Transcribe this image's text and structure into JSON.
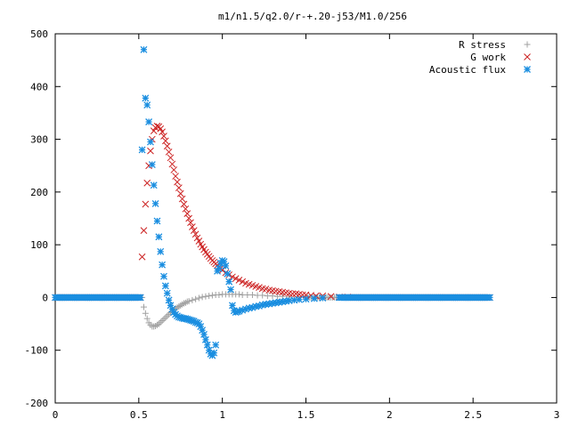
{
  "chart_data": {
    "type": "scatter",
    "title": "m1/n1.5/q2.0/r-+.20-j53/M1.0/256",
    "xlabel": "",
    "ylabel": "",
    "xlim": [
      0,
      3
    ],
    "ylim": [
      -200,
      500
    ],
    "x_ticks": [
      0,
      0.5,
      1,
      1.5,
      2,
      2.5,
      3
    ],
    "x_tick_labels": [
      "0",
      "0.5",
      "1",
      "1.5",
      "2",
      "2.5",
      "3"
    ],
    "y_ticks": [
      -200,
      -100,
      0,
      100,
      200,
      300,
      400,
      500
    ],
    "y_tick_labels": [
      "-200",
      "-100",
      "0",
      "100",
      "200",
      "300",
      "400",
      "500"
    ],
    "grid": false,
    "legend_position": "top-right",
    "series": [
      {
        "name": "R stress",
        "marker": "plus",
        "color": "#a0a0a0",
        "x": [
          0.53,
          0.54,
          0.55,
          0.56,
          0.57,
          0.58,
          0.59,
          0.6,
          0.61,
          0.62,
          0.63,
          0.64,
          0.65,
          0.66,
          0.67,
          0.68,
          0.69,
          0.7,
          0.71,
          0.72,
          0.73,
          0.74,
          0.75,
          0.76,
          0.77,
          0.78,
          0.79,
          0.8,
          0.82,
          0.84,
          0.86,
          0.88,
          0.9,
          0.92,
          0.94,
          0.96,
          0.98,
          1.0,
          1.02,
          1.04,
          1.06,
          1.08,
          1.1,
          1.12,
          1.15,
          1.18,
          1.21,
          1.24,
          1.27,
          1.3,
          1.33,
          1.36,
          1.4,
          1.45,
          1.5
        ],
        "y": [
          -18,
          -30,
          -40,
          -48,
          -52,
          -55,
          -55,
          -54,
          -52,
          -50,
          -47,
          -44,
          -41,
          -38,
          -35,
          -32,
          -29,
          -26,
          -24,
          -21,
          -19,
          -17,
          -15,
          -13,
          -11,
          -10,
          -8,
          -7,
          -5,
          -3,
          -1,
          1,
          2,
          3,
          4,
          5,
          5,
          6,
          6,
          6,
          6,
          6,
          6,
          5,
          5,
          5,
          4,
          4,
          3,
          3,
          2,
          2,
          1,
          1,
          0
        ]
      },
      {
        "name": "G work",
        "marker": "x",
        "color": "#cc2222",
        "x": [
          0.52,
          0.53,
          0.54,
          0.55,
          0.56,
          0.57,
          0.58,
          0.59,
          0.6,
          0.61,
          0.62,
          0.63,
          0.64,
          0.65,
          0.66,
          0.67,
          0.68,
          0.69,
          0.7,
          0.71,
          0.72,
          0.73,
          0.74,
          0.75,
          0.76,
          0.77,
          0.78,
          0.79,
          0.8,
          0.81,
          0.82,
          0.83,
          0.84,
          0.85,
          0.86,
          0.87,
          0.88,
          0.89,
          0.9,
          0.91,
          0.92,
          0.93,
          0.94,
          0.95,
          0.96,
          0.97,
          0.98,
          0.99,
          1.0,
          1.02,
          1.04,
          1.06,
          1.08,
          1.1,
          1.12,
          1.14,
          1.16,
          1.18,
          1.2,
          1.22,
          1.24,
          1.26,
          1.28,
          1.3,
          1.32,
          1.34,
          1.36,
          1.38,
          1.4,
          1.42,
          1.44,
          1.46,
          1.48,
          1.5,
          1.53,
          1.56,
          1.6,
          1.65,
          1.7,
          1.75
        ],
        "y": [
          77,
          127,
          177,
          217,
          250,
          278,
          300,
          316,
          322,
          325,
          324,
          320,
          314,
          306,
          297,
          287,
          276,
          265,
          253,
          242,
          230,
          219,
          208,
          197,
          187,
          177,
          168,
          159,
          150,
          142,
          134,
          127,
          120,
          113,
          107,
          101,
          96,
          91,
          86,
          82,
          78,
          74,
          70,
          67,
          64,
          61,
          58,
          55,
          52,
          47,
          43,
          39,
          36,
          33,
          30,
          27,
          25,
          23,
          21,
          19,
          17,
          16,
          14,
          13,
          12,
          11,
          10,
          9,
          8,
          7,
          7,
          6,
          5,
          5,
          4,
          3,
          3,
          2,
          1,
          1
        ]
      },
      {
        "name": "Acoustic flux",
        "marker": "star",
        "color": "#1a8ee0",
        "x": [
          0.52,
          0.53,
          0.54,
          0.55,
          0.56,
          0.57,
          0.58,
          0.59,
          0.6,
          0.61,
          0.62,
          0.63,
          0.64,
          0.65,
          0.66,
          0.67,
          0.68,
          0.69,
          0.7,
          0.71,
          0.72,
          0.73,
          0.74,
          0.75,
          0.76,
          0.77,
          0.78,
          0.79,
          0.8,
          0.81,
          0.82,
          0.83,
          0.84,
          0.85,
          0.86,
          0.87,
          0.88,
          0.89,
          0.9,
          0.91,
          0.92,
          0.93,
          0.94,
          0.95,
          0.96,
          0.97,
          0.98,
          0.99,
          1.0,
          1.01,
          1.02,
          1.03,
          1.04,
          1.05,
          1.06,
          1.07,
          1.08,
          1.09,
          1.1,
          1.12,
          1.14,
          1.16,
          1.18,
          1.2,
          1.22,
          1.24,
          1.26,
          1.28,
          1.3,
          1.32,
          1.34,
          1.36,
          1.38,
          1.4,
          1.43,
          1.46,
          1.5,
          1.55,
          1.6,
          1.7
        ],
        "y": [
          280,
          470,
          378,
          365,
          333,
          295,
          252,
          213,
          178,
          145,
          115,
          87,
          62,
          40,
          22,
          8,
          -5,
          -15,
          -22,
          -28,
          -32,
          -35,
          -37,
          -38,
          -39,
          -40,
          -40,
          -41,
          -42,
          -43,
          -44,
          -45,
          -47,
          -48,
          -50,
          -55,
          -62,
          -70,
          -80,
          -90,
          -100,
          -107,
          -110,
          -105,
          -90,
          50,
          55,
          65,
          70,
          68,
          60,
          45,
          30,
          15,
          -15,
          -25,
          -28,
          -27,
          -26,
          -24,
          -22,
          -20,
          -19,
          -17,
          -16,
          -14,
          -13,
          -12,
          -11,
          -10,
          -9,
          -8,
          -7,
          -6,
          -5,
          -4,
          -3,
          -2,
          -1,
          0
        ]
      }
    ],
    "baseline_range": [
      0.0,
      2.6
    ]
  }
}
